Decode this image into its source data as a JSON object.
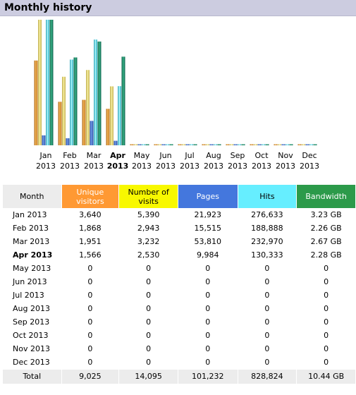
{
  "header": {
    "title": "Monthly history"
  },
  "colors": {
    "visitors": "#ff9933",
    "visits": "#f8f800",
    "pages": "#4477dd",
    "hits": "#66eeff",
    "bandwidth": "#2c9a4a"
  },
  "chart_data": {
    "type": "bar",
    "categories": [
      "Jan",
      "Feb",
      "Mar",
      "Apr",
      "May",
      "Jun",
      "Jul",
      "Aug",
      "Sep",
      "Oct",
      "Nov",
      "Dec"
    ],
    "year": "2013",
    "current_month_index": 3,
    "series": [
      {
        "values": [
          3640,
          1868,
          1951,
          1566,
          0,
          0,
          0,
          0,
          0,
          0,
          0,
          0
        ]
      },
      {
        "values": [
          5390,
          2943,
          3232,
          2530,
          0,
          0,
          0,
          0,
          0,
          0,
          0,
          0
        ]
      },
      {
        "values": [
          21923,
          15515,
          53810,
          9984,
          0,
          0,
          0,
          0,
          0,
          0,
          0,
          0
        ]
      },
      {
        "values": [
          276633,
          188888,
          232970,
          130333,
          0,
          0,
          0,
          0,
          0,
          0,
          0,
          0
        ]
      },
      {
        "values": [
          3.23,
          2.26,
          2.67,
          2.28,
          0,
          0,
          0,
          0,
          0,
          0,
          0,
          0
        ]
      }
    ],
    "series_colors": [
      "#ff9933",
      "#f8f800",
      "#4477dd",
      "#66eeff",
      "#2c9a4a"
    ],
    "scale_note": "visitors/visits share one scale, pages/hits share one scale, bandwidth has its own"
  },
  "table": {
    "headers": {
      "month": "Month",
      "visitors": "Unique visitors",
      "visits": "Number of visits",
      "pages": "Pages",
      "hits": "Hits",
      "bandwidth": "Bandwidth"
    },
    "rows": [
      {
        "month": "Jan 2013",
        "visitors": "3,640",
        "visits": "5,390",
        "pages": "21,923",
        "hits": "276,633",
        "bandwidth": "3.23 GB"
      },
      {
        "month": "Feb 2013",
        "visitors": "1,868",
        "visits": "2,943",
        "pages": "15,515",
        "hits": "188,888",
        "bandwidth": "2.26 GB"
      },
      {
        "month": "Mar 2013",
        "visitors": "1,951",
        "visits": "3,232",
        "pages": "53,810",
        "hits": "232,970",
        "bandwidth": "2.67 GB"
      },
      {
        "month": "Apr 2013",
        "visitors": "1,566",
        "visits": "2,530",
        "pages": "9,984",
        "hits": "130,333",
        "bandwidth": "2.28 GB",
        "current": true
      },
      {
        "month": "May 2013",
        "visitors": "0",
        "visits": "0",
        "pages": "0",
        "hits": "0",
        "bandwidth": "0"
      },
      {
        "month": "Jun 2013",
        "visitors": "0",
        "visits": "0",
        "pages": "0",
        "hits": "0",
        "bandwidth": "0"
      },
      {
        "month": "Jul 2013",
        "visitors": "0",
        "visits": "0",
        "pages": "0",
        "hits": "0",
        "bandwidth": "0"
      },
      {
        "month": "Aug 2013",
        "visitors": "0",
        "visits": "0",
        "pages": "0",
        "hits": "0",
        "bandwidth": "0"
      },
      {
        "month": "Sep 2013",
        "visitors": "0",
        "visits": "0",
        "pages": "0",
        "hits": "0",
        "bandwidth": "0"
      },
      {
        "month": "Oct 2013",
        "visitors": "0",
        "visits": "0",
        "pages": "0",
        "hits": "0",
        "bandwidth": "0"
      },
      {
        "month": "Nov 2013",
        "visitors": "0",
        "visits": "0",
        "pages": "0",
        "hits": "0",
        "bandwidth": "0"
      },
      {
        "month": "Dec 2013",
        "visitors": "0",
        "visits": "0",
        "pages": "0",
        "hits": "0",
        "bandwidth": "0"
      }
    ],
    "total": {
      "month": "Total",
      "visitors": "9,025",
      "visits": "14,095",
      "pages": "101,232",
      "hits": "828,824",
      "bandwidth": "10.44 GB"
    }
  }
}
